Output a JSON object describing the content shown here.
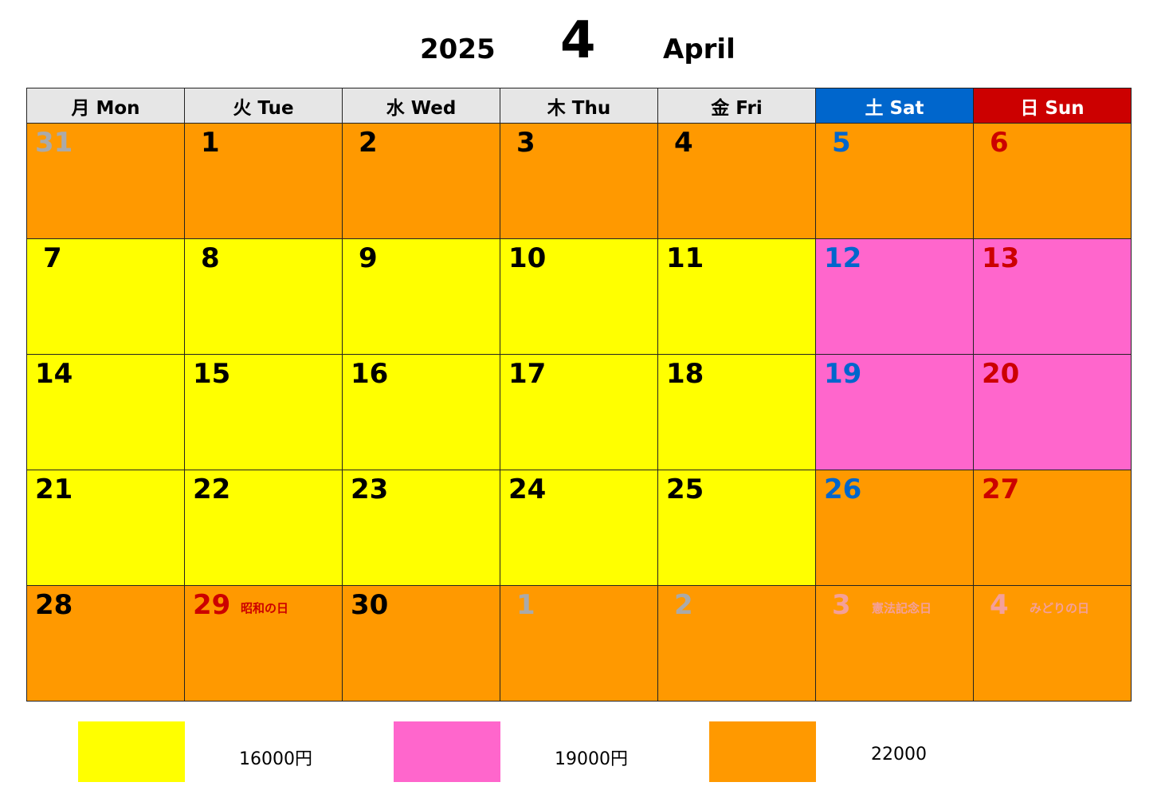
{
  "title": {
    "year": "2025",
    "month_number": "4",
    "month_name": "April"
  },
  "weekdays": [
    {
      "label": "月 Mon",
      "kind": "weekday"
    },
    {
      "label": "火 Tue",
      "kind": "weekday"
    },
    {
      "label": "水 Wed",
      "kind": "weekday"
    },
    {
      "label": "木 Thu",
      "kind": "weekday"
    },
    {
      "label": "金 Fri",
      "kind": "weekday"
    },
    {
      "label": "土 Sat",
      "kind": "sat"
    },
    {
      "label": "日 Sun",
      "kind": "sun"
    }
  ],
  "colors": {
    "orange": "#ff9900",
    "yellow": "#ffff00",
    "pink": "#ff66cc",
    "saturday_blue": "#0066cc",
    "sunday_red": "#cc0000"
  },
  "weeks": [
    [
      {
        "day": "31",
        "fill": "orange",
        "style": "out"
      },
      {
        "day": "1",
        "fill": "orange",
        "style": "normal"
      },
      {
        "day": "2",
        "fill": "orange",
        "style": "normal"
      },
      {
        "day": "3",
        "fill": "orange",
        "style": "normal"
      },
      {
        "day": "4",
        "fill": "orange",
        "style": "normal"
      },
      {
        "day": "5",
        "fill": "orange",
        "style": "sat"
      },
      {
        "day": "6",
        "fill": "orange",
        "style": "sun"
      }
    ],
    [
      {
        "day": "7",
        "fill": "yellow",
        "style": "normal"
      },
      {
        "day": "8",
        "fill": "yellow",
        "style": "normal"
      },
      {
        "day": "9",
        "fill": "yellow",
        "style": "normal"
      },
      {
        "day": "10",
        "fill": "yellow",
        "style": "normal"
      },
      {
        "day": "11",
        "fill": "yellow",
        "style": "normal"
      },
      {
        "day": "12",
        "fill": "pink",
        "style": "sat"
      },
      {
        "day": "13",
        "fill": "pink",
        "style": "sun"
      }
    ],
    [
      {
        "day": "14",
        "fill": "yellow",
        "style": "normal"
      },
      {
        "day": "15",
        "fill": "yellow",
        "style": "normal"
      },
      {
        "day": "16",
        "fill": "yellow",
        "style": "normal"
      },
      {
        "day": "17",
        "fill": "yellow",
        "style": "normal"
      },
      {
        "day": "18",
        "fill": "yellow",
        "style": "normal"
      },
      {
        "day": "19",
        "fill": "pink",
        "style": "sat"
      },
      {
        "day": "20",
        "fill": "pink",
        "style": "sun"
      }
    ],
    [
      {
        "day": "21",
        "fill": "yellow",
        "style": "normal"
      },
      {
        "day": "22",
        "fill": "yellow",
        "style": "normal"
      },
      {
        "day": "23",
        "fill": "yellow",
        "style": "normal"
      },
      {
        "day": "24",
        "fill": "yellow",
        "style": "normal"
      },
      {
        "day": "25",
        "fill": "yellow",
        "style": "normal"
      },
      {
        "day": "26",
        "fill": "orange",
        "style": "sat"
      },
      {
        "day": "27",
        "fill": "orange",
        "style": "sun"
      }
    ],
    [
      {
        "day": "28",
        "fill": "orange",
        "style": "normal"
      },
      {
        "day": "29",
        "fill": "orange",
        "style": "hol",
        "holiday": "昭和の日"
      },
      {
        "day": "30",
        "fill": "orange",
        "style": "normal"
      },
      {
        "day": "1",
        "fill": "orange",
        "style": "out"
      },
      {
        "day": "2",
        "fill": "orange",
        "style": "out"
      },
      {
        "day": "3",
        "fill": "orange",
        "style": "out-hol",
        "holiday": "憲法記念日"
      },
      {
        "day": "4",
        "fill": "orange",
        "style": "out-hol",
        "holiday": "みどりの日"
      }
    ]
  ],
  "legend": [
    {
      "fill": "yellow",
      "label": "16000円"
    },
    {
      "fill": "pink",
      "label": "19000円"
    },
    {
      "fill": "orange",
      "label": "22000"
    }
  ]
}
